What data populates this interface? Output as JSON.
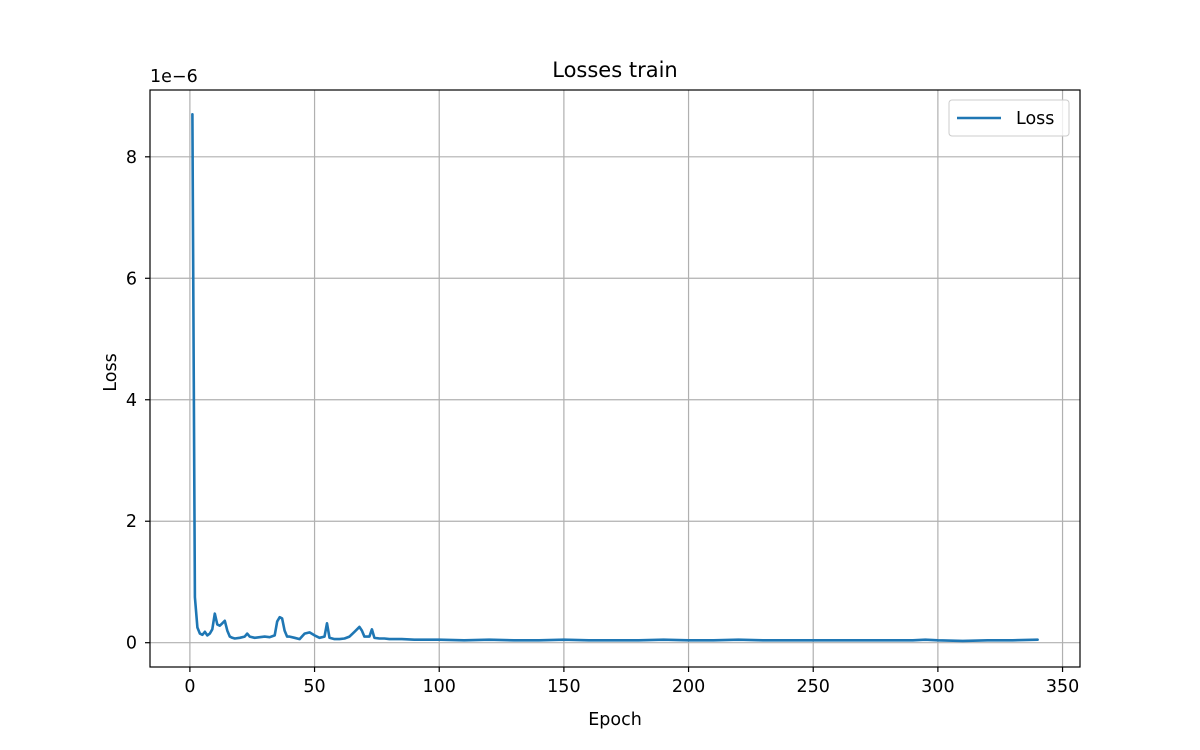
{
  "chart_data": {
    "type": "line",
    "title": "Losses train",
    "xlabel": "Epoch",
    "ylabel": "Loss",
    "y_offset_label": "1e−6",
    "xlim": [
      -16,
      357
    ],
    "ylim": [
      -0.4,
      9.1
    ],
    "x_ticks": [
      0,
      50,
      100,
      150,
      200,
      250,
      300,
      350
    ],
    "y_ticks": [
      0,
      2,
      4,
      6,
      8
    ],
    "grid": true,
    "legend_position": "top-right",
    "series_color": "#1f77b4",
    "series": [
      {
        "name": "Loss",
        "x": [
          1,
          2,
          3,
          4,
          5,
          6,
          7,
          8,
          9,
          10,
          11,
          12,
          13,
          14,
          15,
          16,
          17,
          18,
          20,
          22,
          23,
          24,
          26,
          28,
          30,
          32,
          34,
          35,
          36,
          37,
          38,
          39,
          40,
          42,
          44,
          46,
          48,
          50,
          52,
          54,
          55,
          56,
          58,
          60,
          62,
          64,
          66,
          68,
          69,
          70,
          72,
          73,
          74,
          76,
          78,
          80,
          85,
          90,
          95,
          100,
          110,
          120,
          130,
          140,
          150,
          160,
          170,
          180,
          190,
          200,
          210,
          220,
          230,
          240,
          250,
          260,
          270,
          280,
          290,
          295,
          300,
          310,
          320,
          330,
          340
        ],
        "values": [
          8.7,
          0.75,
          0.25,
          0.15,
          0.13,
          0.18,
          0.12,
          0.15,
          0.22,
          0.48,
          0.3,
          0.28,
          0.32,
          0.36,
          0.2,
          0.1,
          0.08,
          0.07,
          0.08,
          0.1,
          0.15,
          0.1,
          0.08,
          0.09,
          0.1,
          0.09,
          0.12,
          0.35,
          0.42,
          0.4,
          0.2,
          0.1,
          0.1,
          0.08,
          0.06,
          0.15,
          0.17,
          0.12,
          0.08,
          0.1,
          0.32,
          0.08,
          0.06,
          0.06,
          0.07,
          0.1,
          0.18,
          0.26,
          0.2,
          0.1,
          0.1,
          0.22,
          0.08,
          0.07,
          0.07,
          0.06,
          0.06,
          0.05,
          0.05,
          0.05,
          0.04,
          0.05,
          0.04,
          0.04,
          0.05,
          0.04,
          0.04,
          0.04,
          0.05,
          0.04,
          0.04,
          0.05,
          0.04,
          0.04,
          0.04,
          0.04,
          0.04,
          0.04,
          0.04,
          0.05,
          0.04,
          0.03,
          0.04,
          0.04,
          0.05
        ]
      }
    ]
  }
}
